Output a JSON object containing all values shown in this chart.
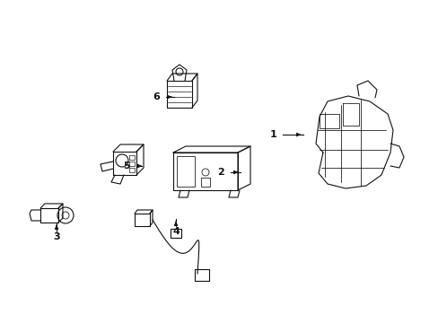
{
  "background_color": "#ffffff",
  "line_color": "#111111",
  "line_width": 0.8,
  "fig_width": 4.89,
  "fig_height": 3.6,
  "dpi": 100
}
